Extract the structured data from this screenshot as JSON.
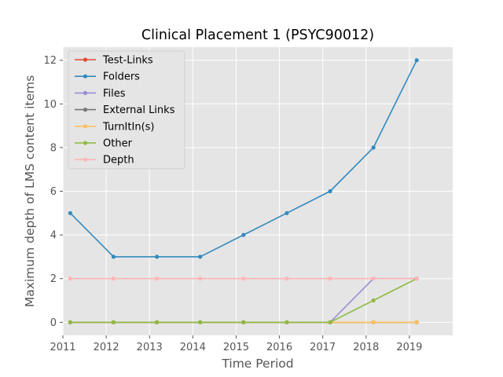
{
  "chart_data": {
    "type": "line",
    "title": "Clinical Placement 1 (PSYC90012)",
    "xlabel": "Time Period",
    "ylabel": "Maximum depth of LMS content items",
    "x": [
      2011.17,
      2012.17,
      2013.17,
      2014.17,
      2015.17,
      2016.17,
      2017.17,
      2018.17,
      2019.17
    ],
    "xlim": [
      2011,
      2020
    ],
    "ylim": [
      -0.6,
      12.6
    ],
    "xticks": [
      2011,
      2012,
      2013,
      2014,
      2015,
      2016,
      2017,
      2018,
      2019
    ],
    "xtick_labels": [
      "2011",
      "2012",
      "2013",
      "2014",
      "2015",
      "2016",
      "2017",
      "2018",
      "2019"
    ],
    "yticks": [
      0,
      2,
      4,
      6,
      8,
      10,
      12
    ],
    "ytick_labels": [
      "0",
      "2",
      "4",
      "6",
      "8",
      "10",
      "12"
    ],
    "grid": true,
    "legend_position": "top-left",
    "series": [
      {
        "name": "Test-Links",
        "color": "#E24A33",
        "values": [
          0,
          0,
          0,
          0,
          0,
          0,
          0,
          0,
          0
        ]
      },
      {
        "name": "Folders",
        "color": "#348ABD",
        "values": [
          5,
          3,
          3,
          3,
          4,
          5,
          6,
          8,
          12
        ]
      },
      {
        "name": "Files",
        "color": "#988ED5",
        "values": [
          0,
          0,
          0,
          0,
          0,
          0,
          0,
          2,
          2
        ]
      },
      {
        "name": "External Links",
        "color": "#777777",
        "values": [
          0,
          0,
          0,
          0,
          0,
          0,
          0,
          0,
          0
        ]
      },
      {
        "name": "TurnItIn(s)",
        "color": "#FBC15E",
        "values": [
          0,
          0,
          0,
          0,
          0,
          0,
          0,
          0,
          0
        ]
      },
      {
        "name": "Other",
        "color": "#8EBA42",
        "values": [
          0,
          0,
          0,
          0,
          0,
          0,
          0,
          1,
          2
        ]
      },
      {
        "name": "Depth",
        "color": "#FFB5B8",
        "values": [
          2,
          2,
          2,
          2,
          2,
          2,
          2,
          2,
          2
        ]
      }
    ]
  }
}
